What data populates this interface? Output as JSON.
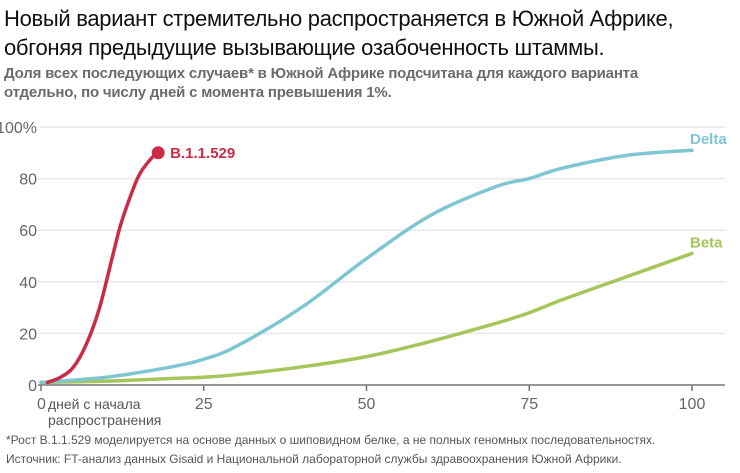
{
  "title": "Новый вариант стремительно распространяется в Южной Африке, обгоняя предыдущие вызывающие озабоченность штаммы.",
  "subtitle": "Доля всех последующих случаев* в Южной Африке подсчитана для каждого варианта отдельно, по числу дней с момента превышения 1%.",
  "footnote": "*Рост B.1.1.529 моделируется на основе данных о шиповидном белке, а не полных геномных последовательностях.",
  "source": "Источник: FT-анализ данных Gisaid и Национальной лабораторной службы здравоохранения Южной Африки.",
  "chart_data": {
    "type": "line",
    "xlabel": "дней с начала распространения",
    "xlabel_lines": [
      "дней с начала",
      "распространения"
    ],
    "xlim": [
      0,
      100
    ],
    "ylim": [
      0,
      100
    ],
    "xticks": [
      0,
      25,
      50,
      75,
      100
    ],
    "yticks": [
      0,
      20,
      40,
      60,
      80,
      100
    ],
    "ytick_labels": [
      "0",
      "20",
      "40",
      "60",
      "80",
      "100%"
    ],
    "grid": true,
    "series": [
      {
        "name": "B.1.1.529",
        "color": "#cc2b47",
        "x": [
          1,
          3,
          5,
          7,
          9,
          11,
          12,
          13,
          15,
          17,
          18
        ],
        "y": [
          1,
          3,
          7,
          16,
          30,
          50,
          60,
          68,
          81,
          88,
          90
        ],
        "end_marker": true
      },
      {
        "name": "Delta",
        "color": "#7fc6d3",
        "x": [
          0,
          10,
          20,
          25,
          30,
          40,
          50,
          60,
          70,
          75,
          80,
          90,
          100
        ],
        "y": [
          1,
          3,
          7,
          10,
          15,
          30,
          49,
          66,
          77,
          80,
          84,
          89,
          91
        ]
      },
      {
        "name": "Beta",
        "color": "#a5c65a",
        "x": [
          0,
          10,
          20,
          25,
          30,
          40,
          50,
          60,
          70,
          75,
          80,
          90,
          100
        ],
        "y": [
          1,
          1.5,
          2.5,
          3,
          4,
          7,
          11,
          17,
          24,
          28,
          33,
          42,
          51
        ]
      }
    ]
  }
}
